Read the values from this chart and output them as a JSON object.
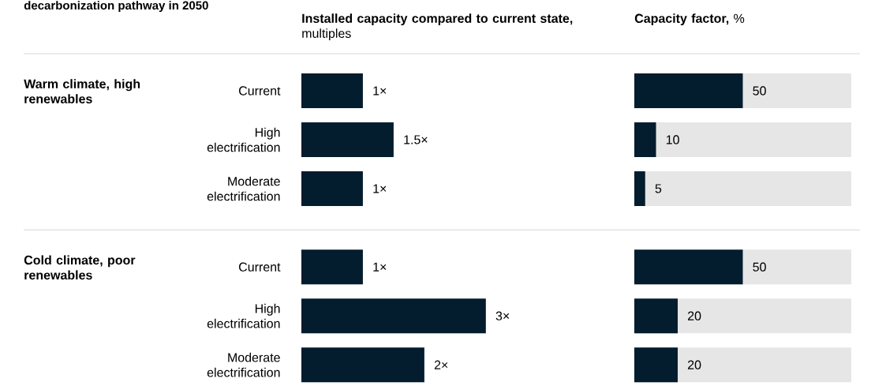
{
  "chart_data": [
    {
      "type": "bar",
      "orientation": "horizontal",
      "title": "decarbonization pathway in 2050",
      "xlabel": "**Installed capacity compared to current state,** multiples",
      "categories": [
        "Current",
        "High electrification",
        "Moderate electrification",
        "Current",
        "High electrification",
        "Moderate electrification"
      ],
      "values": [
        1,
        1.5,
        1,
        1,
        3,
        2
      ],
      "value_labels": [
        "1×",
        "1.5×",
        "1×",
        "1×",
        "3×",
        "2×"
      ],
      "color": "#031c2e",
      "tick_labels": "y",
      "annotations": [
        "Warm climate, high renewables",
        "Cold climate, poor renewables"
      ]
    },
    {
      "type": "bar",
      "orientation": "horizontal",
      "xlabel": "**Capacity factor,** %",
      "categories": [
        null,
        null,
        null,
        null,
        null,
        null
      ],
      "values": [
        50,
        10,
        5,
        50,
        20,
        20
      ],
      "color": "#031c2e",
      "xlim": [
        0,
        100
      ],
      "data_labels": true
    }
  ]
}
